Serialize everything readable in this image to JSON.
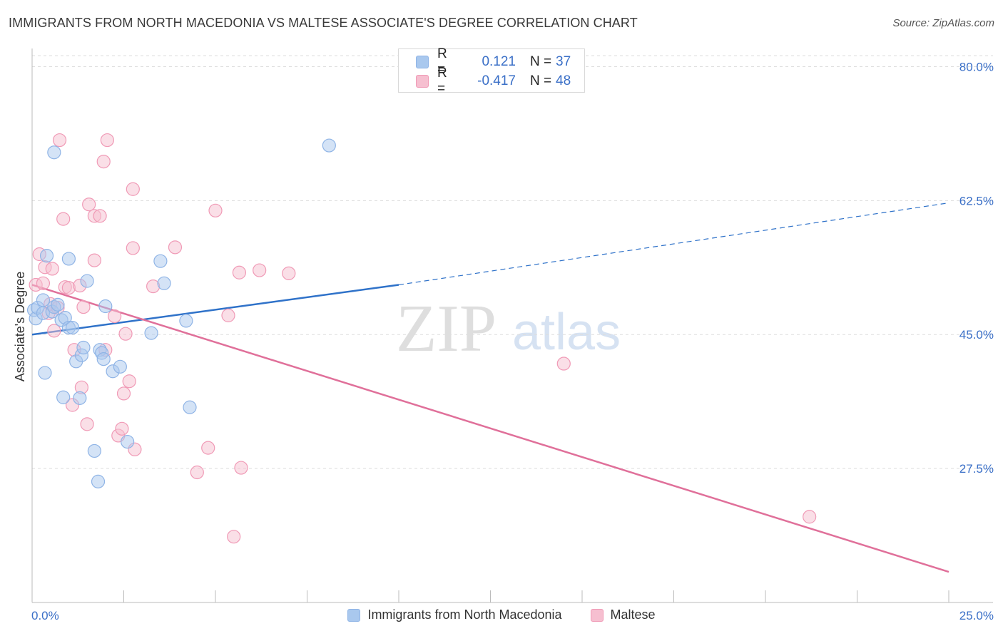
{
  "title": "IMMIGRANTS FROM NORTH MACEDONIA VS MALTESE ASSOCIATE'S DEGREE CORRELATION CHART",
  "source": "Source: ZipAtlas.com",
  "watermark": {
    "zip": "ZIP",
    "atlas": "atlas"
  },
  "colors": {
    "blue_fill": "#a9c8ee",
    "blue_stroke": "#8fb4e6",
    "blue_line": "#2f72c9",
    "pink_fill": "#f6bfd0",
    "pink_stroke": "#f09ab6",
    "pink_line": "#e0709a",
    "tick_label": "#3a6fc7",
    "grid": "#dddddd"
  },
  "stats": {
    "rows": [
      {
        "r_label": "R =",
        "r_value": "0.121",
        "n_label": "N =",
        "n_value": "37"
      },
      {
        "r_label": "R =",
        "r_value": "-0.417",
        "n_label": "N =",
        "n_value": "48"
      }
    ]
  },
  "legend": {
    "items": [
      {
        "label": "Immigrants from North Macedonia"
      },
      {
        "label": "Maltese"
      }
    ]
  },
  "chart_data": {
    "type": "scatter",
    "title": "IMMIGRANTS FROM NORTH MACEDONIA VS MALTESE ASSOCIATE'S DEGREE CORRELATION CHART",
    "xlabel": "",
    "ylabel": "Associate's Degree",
    "xlim": [
      0,
      25
    ],
    "ylim": [
      10.0,
      82.0
    ],
    "x_tick_labels": [
      "0.0%",
      "25.0%"
    ],
    "y_ticks": [
      27.5,
      45.0,
      62.5,
      80.0
    ],
    "y_tick_labels": [
      "27.5%",
      "45.0%",
      "62.5%",
      "80.0%"
    ],
    "grid": "horizontal dashed",
    "legend_position": "bottom",
    "series": [
      {
        "name": "Immigrants from North Macedonia",
        "color": "blue",
        "points": [
          [
            0.05,
            48.2
          ],
          [
            0.1,
            47.1
          ],
          [
            0.15,
            48.5
          ],
          [
            0.3,
            47.8
          ],
          [
            0.3,
            49.5
          ],
          [
            0.35,
            40.0
          ],
          [
            0.4,
            55.3
          ],
          [
            0.55,
            48.0
          ],
          [
            0.6,
            68.8
          ],
          [
            0.6,
            48.6
          ],
          [
            0.7,
            48.9
          ],
          [
            0.8,
            46.9
          ],
          [
            0.85,
            36.8
          ],
          [
            0.9,
            47.2
          ],
          [
            1.0,
            54.9
          ],
          [
            1.0,
            45.9
          ],
          [
            1.1,
            45.9
          ],
          [
            1.2,
            41.5
          ],
          [
            1.3,
            36.7
          ],
          [
            1.35,
            42.3
          ],
          [
            1.4,
            43.3
          ],
          [
            1.5,
            52.0
          ],
          [
            1.7,
            29.8
          ],
          [
            1.8,
            25.8
          ],
          [
            1.85,
            43.0
          ],
          [
            1.9,
            42.6
          ],
          [
            1.95,
            41.8
          ],
          [
            2.0,
            48.7
          ],
          [
            2.2,
            40.2
          ],
          [
            2.4,
            40.8
          ],
          [
            2.6,
            31.0
          ],
          [
            3.25,
            45.2
          ],
          [
            3.5,
            54.6
          ],
          [
            3.6,
            51.7
          ],
          [
            4.2,
            46.8
          ],
          [
            4.3,
            35.5
          ],
          [
            8.1,
            69.7
          ]
        ]
      },
      {
        "name": "Maltese",
        "color": "pink",
        "points": [
          [
            0.1,
            51.5
          ],
          [
            0.2,
            55.5
          ],
          [
            0.3,
            51.7
          ],
          [
            0.35,
            53.8
          ],
          [
            0.45,
            47.8
          ],
          [
            0.5,
            49.0
          ],
          [
            0.55,
            53.6
          ],
          [
            0.6,
            45.5
          ],
          [
            0.7,
            48.5
          ],
          [
            0.75,
            70.4
          ],
          [
            0.85,
            60.1
          ],
          [
            0.9,
            51.2
          ],
          [
            1.0,
            51.1
          ],
          [
            1.1,
            35.8
          ],
          [
            1.15,
            43.0
          ],
          [
            1.3,
            51.4
          ],
          [
            1.35,
            38.1
          ],
          [
            1.4,
            48.6
          ],
          [
            1.5,
            33.3
          ],
          [
            1.55,
            62.0
          ],
          [
            1.7,
            54.7
          ],
          [
            1.7,
            60.5
          ],
          [
            1.85,
            60.5
          ],
          [
            1.95,
            67.6
          ],
          [
            2.0,
            43.0
          ],
          [
            2.05,
            70.4
          ],
          [
            2.25,
            47.4
          ],
          [
            2.35,
            31.8
          ],
          [
            2.45,
            32.7
          ],
          [
            2.5,
            37.3
          ],
          [
            2.55,
            45.1
          ],
          [
            2.65,
            38.9
          ],
          [
            2.75,
            64.0
          ],
          [
            2.75,
            56.3
          ],
          [
            2.8,
            30.0
          ],
          [
            3.3,
            51.3
          ],
          [
            3.9,
            56.4
          ],
          [
            4.5,
            27.0
          ],
          [
            4.8,
            30.2
          ],
          [
            5.0,
            61.2
          ],
          [
            5.35,
            47.5
          ],
          [
            5.65,
            53.1
          ],
          [
            5.7,
            27.6
          ],
          [
            5.5,
            18.6
          ],
          [
            6.2,
            53.4
          ],
          [
            7.0,
            53.0
          ],
          [
            14.5,
            41.2
          ],
          [
            21.2,
            21.2
          ]
        ]
      }
    ],
    "trend_lines": [
      {
        "series": "Immigrants from North Macedonia",
        "solid_from": [
          0,
          45.0
        ],
        "solid_to": [
          10.0,
          51.5
        ],
        "dashed_to": [
          25.0,
          62.2
        ]
      },
      {
        "series": "Maltese",
        "from": [
          0,
          51.5
        ],
        "to": [
          25.0,
          14.0
        ]
      }
    ]
  }
}
